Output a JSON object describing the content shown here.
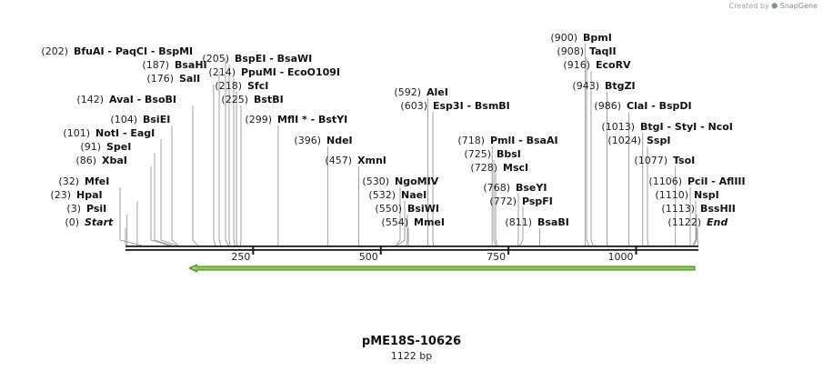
{
  "credit": {
    "prefix": "Created by",
    "brand": "SnapGene"
  },
  "sequence": {
    "name": "pME18S-10626",
    "length_label": "1122 bp",
    "length": 1122
  },
  "ruler": {
    "ticks": [
      250,
      500,
      750,
      1000
    ]
  },
  "feature": {
    "name": "green-arrow",
    "start": 111,
    "end": 1122,
    "direction": "reverse",
    "color": "#8ad14b"
  },
  "sites": [
    {
      "pos": "(0)",
      "label": "Start",
      "italic": true,
      "cut": 0
    },
    {
      "pos": "(3)",
      "label": "PsiI",
      "cut": 3
    },
    {
      "pos": "(23)",
      "label": "HpaI",
      "cut": 23
    },
    {
      "pos": "(32)",
      "label": "MfeI",
      "cut": 32
    },
    {
      "pos": "(86)",
      "label": "XbaI",
      "cut": 86
    },
    {
      "pos": "(91)",
      "label": "SpeI",
      "cut": 91
    },
    {
      "pos": "(101)",
      "label": "NotI - EagI",
      "cut": 101
    },
    {
      "pos": "(104)",
      "label": "BsiEI",
      "cut": 104
    },
    {
      "pos": "(142)",
      "label": "AvaI - BsoBI",
      "cut": 142
    },
    {
      "pos": "(176)",
      "label": "SalI",
      "cut": 176
    },
    {
      "pos": "(187)",
      "label": "BsaHI",
      "cut": 187
    },
    {
      "pos": "(202)",
      "label": "BfuAI - PaqCI - BspMI",
      "cut": 202
    },
    {
      "pos": "(205)",
      "label": "BspEI - BsaWI",
      "cut": 205
    },
    {
      "pos": "(214)",
      "label": "PpuMI - EcoO109I",
      "cut": 214
    },
    {
      "pos": "(218)",
      "label": "SfcI",
      "cut": 218
    },
    {
      "pos": "(225)",
      "label": "BstBI",
      "cut": 225
    },
    {
      "pos": "(299)",
      "label": "MflI * - BstYI",
      "cut": 299
    },
    {
      "pos": "(396)",
      "label": "NdeI",
      "cut": 396
    },
    {
      "pos": "(457)",
      "label": "XmnI",
      "cut": 457
    },
    {
      "pos": "(530)",
      "label": "NgoMIV",
      "cut": 530
    },
    {
      "pos": "(532)",
      "label": "NaeI",
      "cut": 532
    },
    {
      "pos": "(550)",
      "label": "BsiWI",
      "cut": 550
    },
    {
      "pos": "(554)",
      "label": "MmeI",
      "cut": 554
    },
    {
      "pos": "(592)",
      "label": "AleI",
      "cut": 592
    },
    {
      "pos": "(603)",
      "label": "Esp3I - BsmBI",
      "cut": 603
    },
    {
      "pos": "(718)",
      "label": "PmlI - BsaAI",
      "cut": 718
    },
    {
      "pos": "(725)",
      "label": "BbsI",
      "cut": 725
    },
    {
      "pos": "(728)",
      "label": "MscI",
      "cut": 728
    },
    {
      "pos": "(768)",
      "label": "BseYI",
      "cut": 768
    },
    {
      "pos": "(772)",
      "label": "PspFI",
      "cut": 772
    },
    {
      "pos": "(811)",
      "label": "BsaBI",
      "cut": 811
    },
    {
      "pos": "(900)",
      "label": "BpmI",
      "cut": 900
    },
    {
      "pos": "(908)",
      "label": "TaqII",
      "cut": 908
    },
    {
      "pos": "(916)",
      "label": "EcoRV",
      "cut": 916
    },
    {
      "pos": "(943)",
      "label": "BtgZI",
      "cut": 943
    },
    {
      "pos": "(986)",
      "label": "ClaI - BspDI",
      "cut": 986
    },
    {
      "pos": "(1013)",
      "label": "BtgI - StyI - NcoI",
      "cut": 1013
    },
    {
      "pos": "(1024)",
      "label": "SspI",
      "cut": 1024
    },
    {
      "pos": "(1077)",
      "label": "TsoI",
      "cut": 1077
    },
    {
      "pos": "(1106)",
      "label": "PciI - AflIII",
      "cut": 1106
    },
    {
      "pos": "(1110)",
      "label": "NspI",
      "cut": 1110
    },
    {
      "pos": "(1113)",
      "label": "BssHII",
      "cut": 1113
    },
    {
      "pos": "(1122)",
      "label": "End",
      "italic": true,
      "cut": 1122
    }
  ]
}
